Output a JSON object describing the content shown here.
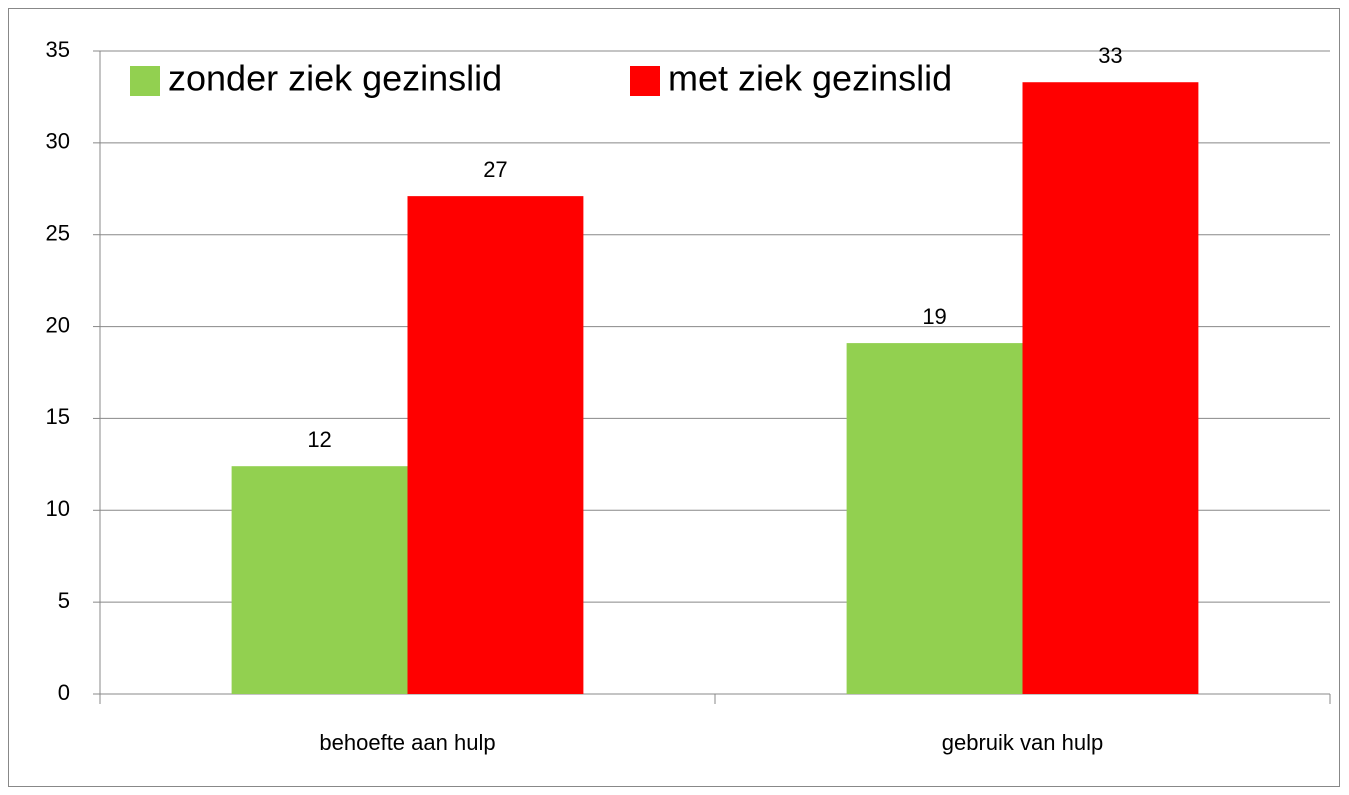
{
  "chart_data": {
    "type": "bar",
    "categories": [
      "behoefte aan hulp",
      "gebruik van hulp"
    ],
    "series": [
      {
        "name": "zonder ziek gezinslid",
        "color": "#92d050",
        "values": [
          12.4,
          19.1
        ],
        "value_labels": [
          "12",
          "19"
        ]
      },
      {
        "name": "met ziek gezinslid",
        "color": "#ff0000",
        "values": [
          27.1,
          33.3
        ],
        "value_labels": [
          "27",
          "33"
        ]
      }
    ],
    "ylim": [
      0,
      35
    ],
    "yticks": [
      0,
      5,
      10,
      15,
      20,
      25,
      30,
      35
    ],
    "grid": true,
    "legend": "top-left"
  }
}
